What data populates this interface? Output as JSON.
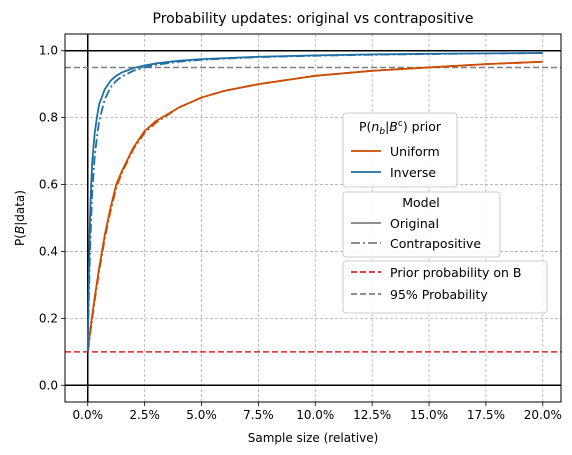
{
  "chart_data": {
    "type": "line",
    "title": "Probability updates: original vs contrapositive",
    "xlabel": "Sample size (relative)",
    "ylabel_prefix": "P(",
    "ylabel_var": "B",
    "ylabel_suffix": "|data)",
    "xlim": [
      -0.01,
      0.208
    ],
    "ylim": [
      -0.05,
      1.05
    ],
    "grid": true,
    "x_ticks": [
      0,
      0.025,
      0.05,
      0.075,
      0.1,
      0.125,
      0.15,
      0.175,
      0.2
    ],
    "x_tick_labels": [
      "0.0%",
      "2.5%",
      "5.0%",
      "7.5%",
      "10.0%",
      "12.5%",
      "15.0%",
      "17.5%",
      "20.0%"
    ],
    "y_ticks": [
      0,
      0.2,
      0.4,
      0.6,
      0.8,
      1.0
    ],
    "y_tick_labels": [
      "0.0",
      "0.2",
      "0.4",
      "0.6",
      "0.8",
      "1.0"
    ],
    "series": [
      {
        "name": "Uniform",
        "model": "Original",
        "color": "#cc4c02",
        "x": [
          0.0,
          0.0005,
          0.001,
          0.002,
          0.003,
          0.005,
          0.0075,
          0.01,
          0.0125,
          0.015,
          0.02,
          0.025,
          0.03,
          0.04,
          0.05,
          0.06,
          0.075,
          0.09,
          0.1,
          0.125,
          0.15,
          0.175,
          0.2
        ],
        "y": [
          0.1,
          0.13,
          0.16,
          0.21,
          0.26,
          0.35,
          0.45,
          0.53,
          0.6,
          0.64,
          0.71,
          0.76,
          0.79,
          0.83,
          0.86,
          0.88,
          0.9,
          0.915,
          0.925,
          0.94,
          0.95,
          0.96,
          0.967
        ]
      },
      {
        "name": "Uniform",
        "model": "Contrapositive",
        "color": "#cc4c02",
        "x": [
          0.0,
          0.0005,
          0.001,
          0.002,
          0.003,
          0.005,
          0.0075,
          0.01,
          0.0125,
          0.015,
          0.02,
          0.025,
          0.03,
          0.04,
          0.05,
          0.06,
          0.075,
          0.09,
          0.1,
          0.125,
          0.15,
          0.175,
          0.2
        ],
        "y": [
          0.1,
          0.12,
          0.15,
          0.2,
          0.25,
          0.34,
          0.44,
          0.52,
          0.59,
          0.635,
          0.705,
          0.755,
          0.785,
          0.83,
          0.86,
          0.88,
          0.9,
          0.915,
          0.925,
          0.94,
          0.95,
          0.96,
          0.967
        ]
      },
      {
        "name": "Inverse",
        "model": "Original",
        "color": "#1f6fa6",
        "x": [
          0.0,
          0.0002,
          0.0005,
          0.001,
          0.0015,
          0.002,
          0.003,
          0.004,
          0.005,
          0.0075,
          0.01,
          0.0125,
          0.015,
          0.02,
          0.025,
          0.03,
          0.04,
          0.05,
          0.075,
          0.1,
          0.125,
          0.15,
          0.175,
          0.2
        ],
        "y": [
          0.1,
          0.2,
          0.33,
          0.5,
          0.6,
          0.67,
          0.75,
          0.8,
          0.84,
          0.885,
          0.91,
          0.925,
          0.935,
          0.948,
          0.956,
          0.962,
          0.97,
          0.975,
          0.982,
          0.986,
          0.989,
          0.991,
          0.992,
          0.993
        ]
      },
      {
        "name": "Inverse",
        "model": "Contrapositive",
        "color": "#1f6fa6",
        "x": [
          0.0,
          0.0002,
          0.0005,
          0.001,
          0.0015,
          0.002,
          0.003,
          0.004,
          0.005,
          0.0075,
          0.01,
          0.0125,
          0.015,
          0.02,
          0.025,
          0.03,
          0.04,
          0.05,
          0.075,
          0.1,
          0.125,
          0.15,
          0.175,
          0.2
        ],
        "y": [
          0.1,
          0.17,
          0.27,
          0.4,
          0.5,
          0.58,
          0.68,
          0.74,
          0.79,
          0.855,
          0.89,
          0.91,
          0.923,
          0.94,
          0.95,
          0.958,
          0.967,
          0.973,
          0.981,
          0.985,
          0.988,
          0.99,
          0.992,
          0.993
        ]
      }
    ],
    "hlines": [
      {
        "name": "Prior probability on B",
        "y": 0.1,
        "color": "#d62728",
        "style": "dashed"
      },
      {
        "name": "95% Probability",
        "y": 0.95,
        "color": "#7f7f7f",
        "style": "dashed"
      }
    ],
    "axis_lines": {
      "y": [
        0,
        1
      ],
      "x": [
        0
      ]
    },
    "legends": [
      {
        "title_prefix": "P(",
        "title_var": "n",
        "title_sub": "b",
        "title_mid": "|",
        "title_var2": "B",
        "title_sup": "c",
        "title_suffix": ") prior",
        "placement": "center-right",
        "entries": [
          {
            "label": "Uniform",
            "color": "#cc4c02",
            "style": "solid"
          },
          {
            "label": "Inverse",
            "color": "#1f6fa6",
            "style": "solid"
          }
        ]
      },
      {
        "title": "Model",
        "placement": "center-right",
        "entries": [
          {
            "label": "Original",
            "color": "#7f7f7f",
            "style": "solid"
          },
          {
            "label": "Contrapositive",
            "color": "#7f7f7f",
            "style": "dashdot"
          }
        ]
      },
      {
        "placement": "center-right",
        "entries": [
          {
            "label": "Prior probability on B",
            "color": "#d62728",
            "style": "dashed"
          },
          {
            "label": "95% Probability",
            "color": "#7f7f7f",
            "style": "dashed"
          }
        ]
      }
    ]
  }
}
